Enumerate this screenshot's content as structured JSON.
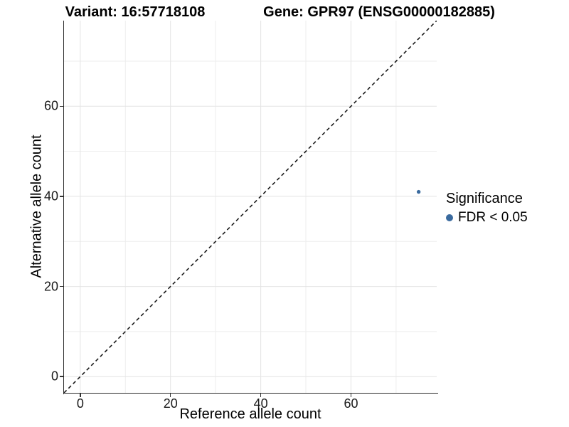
{
  "figure": {
    "title_left": "Variant: 16:57718108",
    "title_right": "Gene: GPR97 (ENSG00000182885)"
  },
  "chart_data": {
    "type": "scatter",
    "title_left": "Variant: 16:57718108",
    "title_right": "Gene: GPR97 (ENSG00000182885)",
    "xlabel": "Reference allele count",
    "ylabel": "Alternative allele count",
    "xlim": [
      -3.6,
      79
    ],
    "ylim": [
      -3.6,
      79
    ],
    "x_major_ticks": [
      0,
      20,
      40,
      60
    ],
    "y_major_ticks": [
      0,
      20,
      40,
      60
    ],
    "x_minor_ticks": [
      10,
      30,
      50,
      70
    ],
    "y_minor_ticks": [
      10,
      30,
      50,
      70
    ],
    "grid": true,
    "reference_line": {
      "equation": "y = x",
      "style": "dashed",
      "color": "#1a1a1a"
    },
    "series": [
      {
        "name": "FDR < 0.05",
        "color": "#3a6a9e",
        "points": [
          {
            "x": 75,
            "y": 41
          }
        ]
      }
    ],
    "legend": {
      "title": "Significance",
      "position": "right",
      "items": [
        {
          "label": "FDR < 0.05",
          "color": "#3a6a9e"
        }
      ]
    }
  },
  "colors": {
    "background": "#ffffff",
    "axis_line": "#2b2b2b",
    "tick_mark": "#333333",
    "grid_major": "#e4e4e4",
    "grid_minor": "#ededed",
    "point": "#3a6a9e",
    "reference_line": "#1a1a1a",
    "text": "#000000"
  }
}
